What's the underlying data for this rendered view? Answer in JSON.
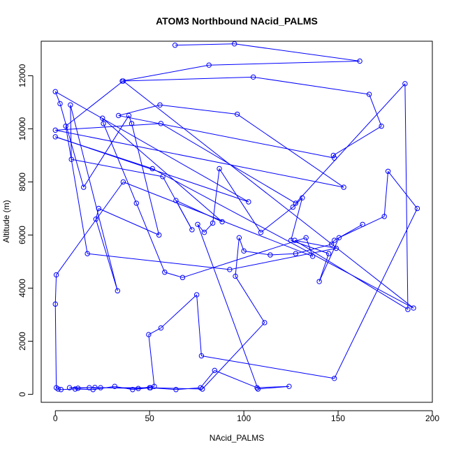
{
  "chart_data": {
    "type": "scatter",
    "title": "ATOM3 Northbound NAcid_PALMS",
    "xlabel": "NAcid_PALMS",
    "ylabel": "Altitude (m)",
    "xlim": [
      -7.5,
      200
    ],
    "ylim": [
      -300,
      13300
    ],
    "xticks": [
      0,
      50,
      100,
      150,
      200
    ],
    "yticks": [
      0,
      2000,
      4000,
      6000,
      8000,
      10000,
      12000
    ],
    "xtick_labels": [
      "0",
      "50",
      "100",
      "150",
      "200"
    ],
    "ytick_labels": [
      "0",
      "2000",
      "4000",
      "6000",
      "8000",
      "10000",
      "12000"
    ],
    "grid": false,
    "connected": true,
    "series": [
      {
        "color": "#0000ff",
        "marker": "open-circle",
        "points": [
          [
            63.5,
            13150
          ],
          [
            95.0,
            13200
          ],
          [
            161.5,
            12550
          ],
          [
            81.5,
            12400
          ],
          [
            35.5,
            11800
          ],
          [
            105.0,
            11950
          ],
          [
            166.5,
            11300
          ],
          [
            173.0,
            10100
          ],
          [
            147.5,
            9000
          ],
          [
            148.0,
            8900
          ],
          [
            33.5,
            10500
          ],
          [
            55.5,
            10900
          ],
          [
            96.5,
            10550
          ],
          [
            153.0,
            7800
          ],
          [
            0.0,
            9950
          ],
          [
            56.0,
            10200
          ],
          [
            127.5,
            7200
          ],
          [
            185.5,
            11700
          ],
          [
            187.0,
            3200
          ],
          [
            127.0,
            5800
          ],
          [
            149.0,
            5500
          ],
          [
            92.5,
            4700
          ],
          [
            17.0,
            5300
          ],
          [
            5.5,
            10100
          ],
          [
            36.0,
            11800
          ],
          [
            190.0,
            3250
          ],
          [
            51.5,
            8500
          ],
          [
            0.0,
            9700
          ],
          [
            102.5,
            7250
          ],
          [
            0.0,
            11400
          ],
          [
            2.5,
            10950
          ],
          [
            15.0,
            7800
          ],
          [
            39.0,
            10500
          ],
          [
            40.5,
            10200
          ],
          [
            55.0,
            6000
          ],
          [
            23.0,
            7000
          ],
          [
            21.5,
            6600
          ],
          [
            33.0,
            3900
          ],
          [
            8.0,
            10900
          ],
          [
            8.5,
            8850
          ],
          [
            57.0,
            8200
          ],
          [
            72.5,
            6200
          ],
          [
            64.0,
            7300
          ],
          [
            88.5,
            6500
          ],
          [
            25.0,
            10400
          ],
          [
            25.5,
            10200
          ],
          [
            43.0,
            7200
          ],
          [
            58.0,
            4600
          ],
          [
            67.5,
            4400
          ],
          [
            133.0,
            5900
          ],
          [
            136.5,
            5200
          ],
          [
            36.0,
            8000
          ],
          [
            0.5,
            4500
          ],
          [
            0.0,
            3400
          ],
          [
            0.5,
            250
          ],
          [
            1.5,
            200
          ],
          [
            3.0,
            180
          ],
          [
            10.5,
            200
          ],
          [
            20.0,
            180
          ],
          [
            31.5,
            300
          ],
          [
            41.0,
            180
          ],
          [
            50.5,
            250
          ],
          [
            64.0,
            180
          ],
          [
            77.0,
            250
          ],
          [
            84.5,
            900
          ],
          [
            107.0,
            250
          ],
          [
            124.0,
            300
          ],
          [
            107.5,
            200
          ],
          [
            75.5,
            6400
          ],
          [
            79.0,
            6100
          ],
          [
            83.5,
            6450
          ],
          [
            87.0,
            8500
          ],
          [
            109.0,
            6100
          ],
          [
            126.0,
            7050
          ],
          [
            131.0,
            7400
          ],
          [
            125.0,
            5800
          ],
          [
            145.0,
            5300
          ],
          [
            140.0,
            4250
          ],
          [
            150.5,
            5900
          ],
          [
            174.5,
            6700
          ],
          [
            176.5,
            8400
          ],
          [
            192.0,
            7000
          ],
          [
            148.0,
            600
          ],
          [
            77.5,
            1450
          ],
          [
            75.0,
            3750
          ],
          [
            56.0,
            2500
          ],
          [
            49.5,
            2250
          ],
          [
            52.5,
            300
          ],
          [
            44.0,
            220
          ],
          [
            21.0,
            260
          ],
          [
            12.0,
            230
          ],
          [
            7.5,
            250
          ],
          [
            18.0,
            250
          ],
          [
            24.0,
            250
          ],
          [
            50.0,
            250
          ],
          [
            78.0,
            200
          ],
          [
            111.0,
            2700
          ],
          [
            95.5,
            4450
          ],
          [
            97.5,
            5900
          ],
          [
            100.0,
            5400
          ],
          [
            114.0,
            5250
          ],
          [
            127.5,
            5300
          ],
          [
            146.5,
            5650
          ],
          [
            148.0,
            5800
          ],
          [
            163.0,
            6400
          ]
        ]
      }
    ]
  }
}
